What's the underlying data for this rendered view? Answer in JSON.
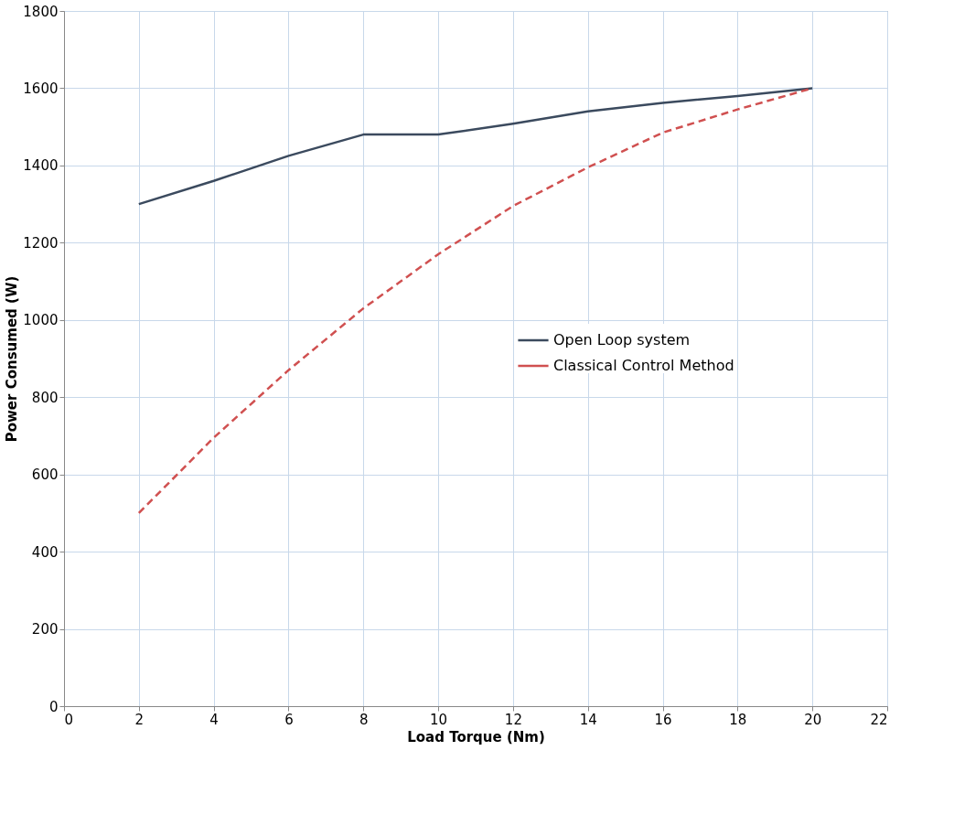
{
  "chart_data": {
    "type": "line",
    "xlabel": "Load Torque (Nm)",
    "ylabel": "Power Consumed (W)",
    "x": [
      2,
      4,
      6,
      8,
      10,
      12,
      14,
      16,
      18,
      20
    ],
    "xlim": [
      0,
      22
    ],
    "xticks": [
      0,
      2,
      4,
      6,
      8,
      10,
      12,
      14,
      16,
      18,
      20,
      22
    ],
    "ylim": [
      0,
      1800
    ],
    "yticks": [
      0,
      200,
      400,
      600,
      800,
      1000,
      1200,
      1400,
      1600,
      1800
    ],
    "grid": true,
    "legend": "right",
    "marker": "none",
    "series": [
      {
        "name": "Open Loop system",
        "color": "#3b4a5e",
        "line_style": "solid",
        "values": [
          1300,
          1360,
          1425,
          1480,
          1480,
          1508,
          1540,
          1562,
          1580,
          1600
        ]
      },
      {
        "name": "Classical Control Method",
        "color": "#d05050",
        "line_style": "dashed",
        "values": [
          500,
          695,
          870,
          1030,
          1170,
          1295,
          1395,
          1485,
          1545,
          1600
        ]
      }
    ]
  }
}
